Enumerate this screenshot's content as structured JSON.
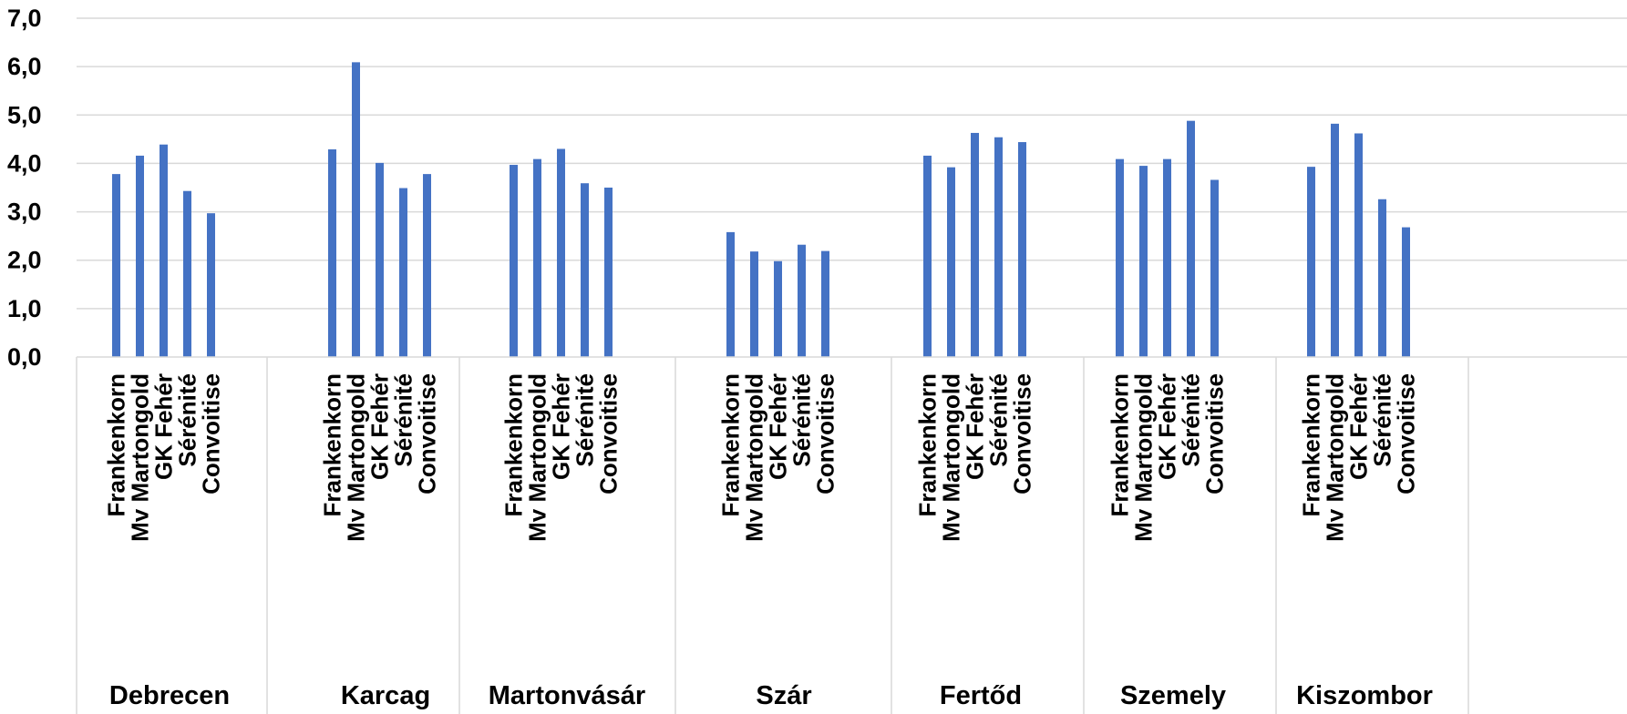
{
  "chart_data": {
    "type": "bar",
    "title": "",
    "xlabel": "",
    "ylabel": "",
    "ylim": [
      0,
      7
    ],
    "yticks": [
      "0,0",
      "1,0",
      "2,0",
      "3,0",
      "4,0",
      "5,0",
      "6,0",
      "7,0"
    ],
    "grid": true,
    "bar_color": "#4472C4",
    "varieties": [
      "Frankenkorn",
      "Mv Martongold",
      "GK Fehér",
      "Sérénité",
      "Convoitise"
    ],
    "groups": [
      {
        "name": "Debrecen",
        "values": [
          3.78,
          4.16,
          4.39,
          3.43,
          2.97
        ]
      },
      {
        "name": "Karcag",
        "values": [
          4.29,
          6.09,
          4.01,
          3.49,
          3.78
        ]
      },
      {
        "name": "Martonvásár",
        "values": [
          3.97,
          4.09,
          4.3,
          3.59,
          3.5
        ]
      },
      {
        "name": "Szár",
        "values": [
          2.58,
          2.18,
          1.98,
          2.32,
          2.19
        ]
      },
      {
        "name": "Fertőd",
        "values": [
          4.16,
          3.92,
          4.63,
          4.54,
          4.44
        ]
      },
      {
        "name": "Szemely",
        "values": [
          4.09,
          3.95,
          4.09,
          4.88,
          3.66
        ]
      },
      {
        "name": "Kiszombor",
        "values": [
          3.93,
          4.82,
          4.62,
          3.26,
          2.68
        ]
      }
    ]
  }
}
